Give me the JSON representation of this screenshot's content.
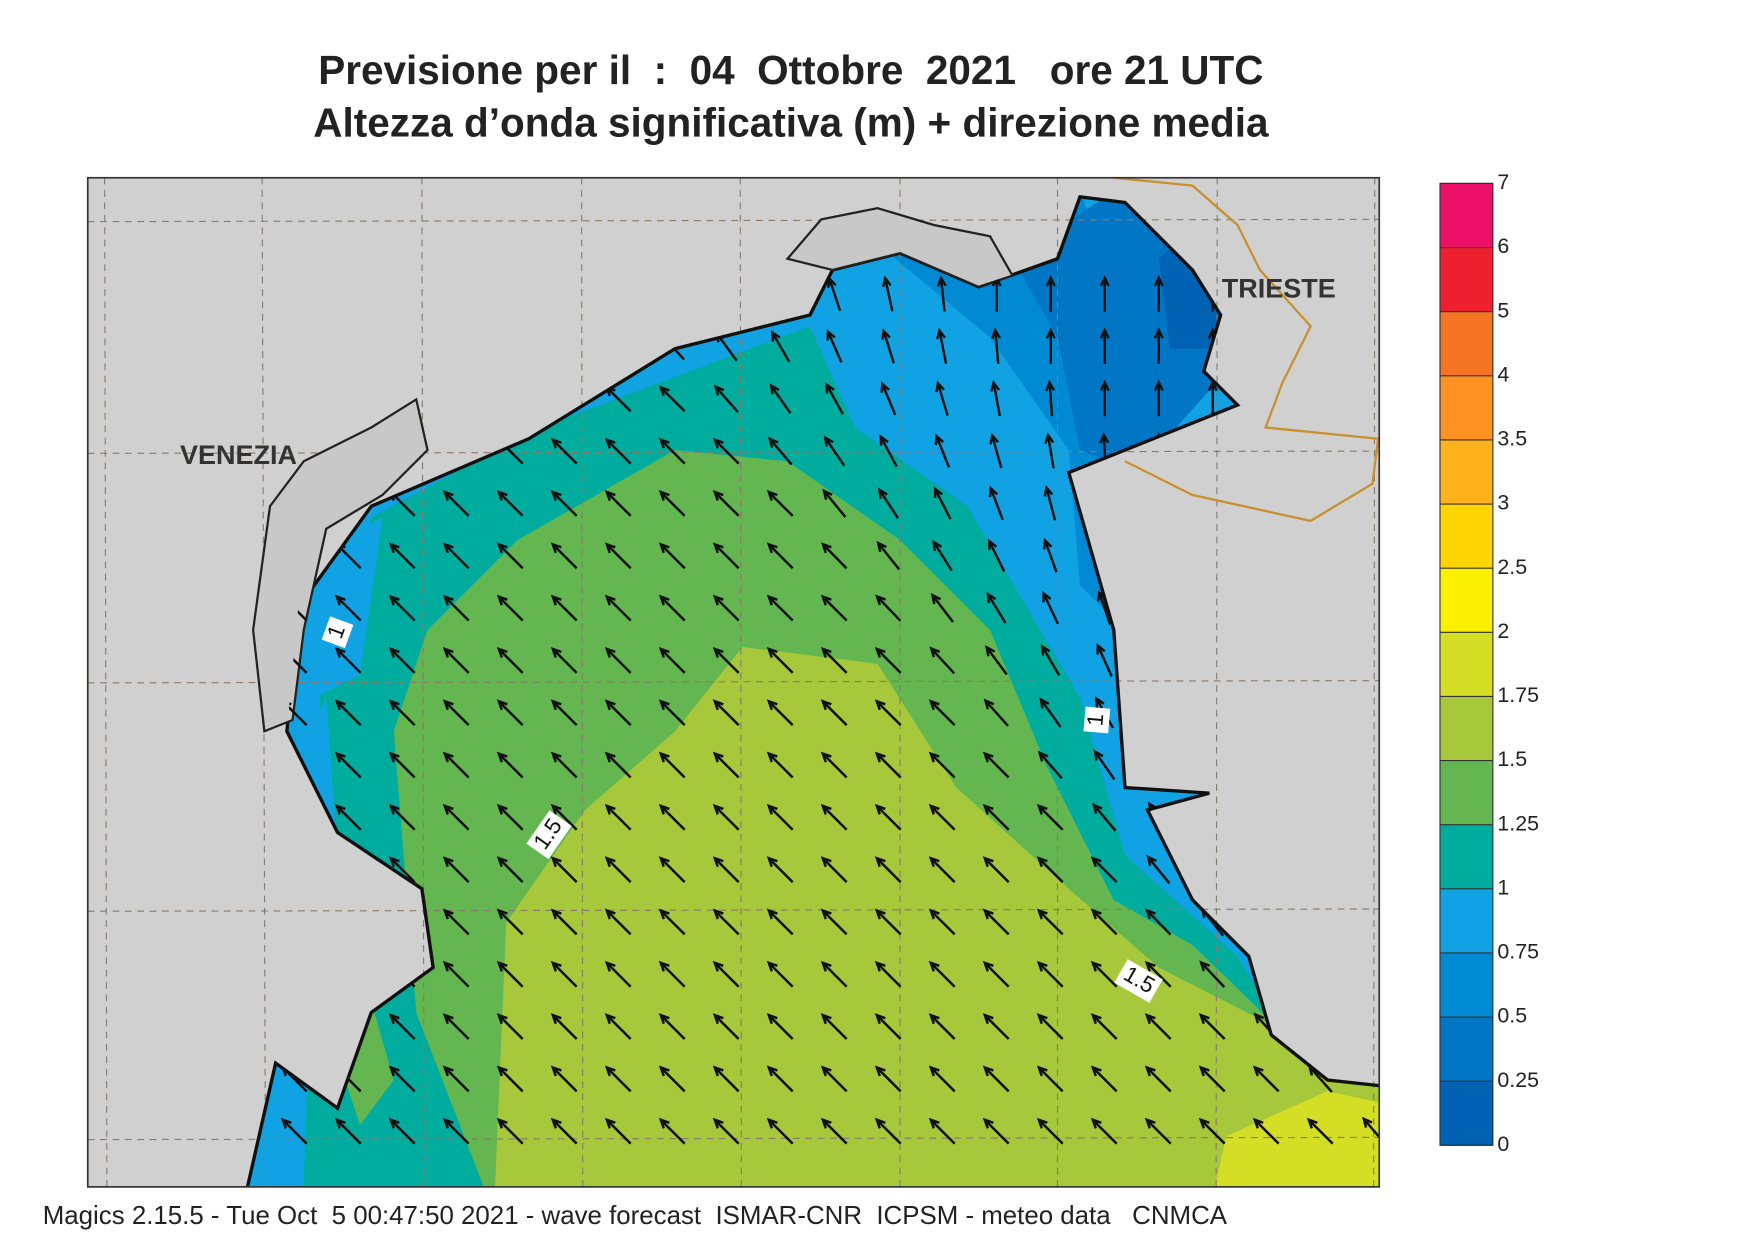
{
  "header": {
    "title_lines": [
      "Previsione per il  :  04  Ottobre  2021   ore 21 UTC",
      "Altezza d’onda significativa (m) + direzione media"
    ]
  },
  "map": {
    "places": [
      "VENEZIA",
      "TRIESTE"
    ],
    "contour_labels": [
      1,
      1,
      1.5,
      1.5
    ]
  },
  "colorbar": {
    "ticks": [
      0,
      0.25,
      0.5,
      0.75,
      1,
      1.25,
      1.5,
      1.75,
      2,
      2.5,
      3,
      3.5,
      4,
      5,
      6,
      7
    ],
    "colors": [
      "#0062b2",
      "#0076c4",
      "#008ad4",
      "#10a2e2",
      "#00ac9e",
      "#64b650",
      "#a6c83a",
      "#d4de24",
      "#faf000",
      "#ffd400",
      "#ffb21c",
      "#ff9222",
      "#f47424",
      "#ee2030",
      "#ec1068"
    ]
  },
  "footer": "Magics 2.15.5 - Tue Oct  5 00:47:50 2021 - wave forecast  ISMAR-CNR  ICPSM - meteo data   CNMCA"
}
